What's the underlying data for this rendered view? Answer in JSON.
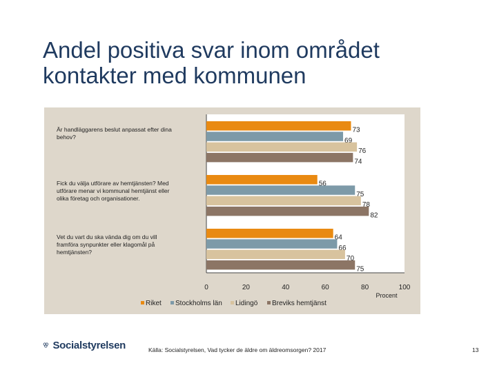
{
  "title": "Andel positiva svar inom området kontakter med kommunen",
  "colors": {
    "background_panel": "#ded7cb",
    "riket": "#e98a12",
    "stockholms_lan": "#7d9aa8",
    "lidingo": "#d8c39e",
    "breviks": "#8c7565"
  },
  "chart_data": {
    "type": "bar",
    "orientation": "horizontal",
    "categories": [
      "Är handläggarens beslut anpassat efter dina behov?",
      "Fick du välja utförare av hemtjänsten? Med utförare menar vi kommunal hemtjänst eller olika företag och organisationer.",
      "Vet du vart du ska vända dig om du vill framföra synpunkter eller klagomål på hemtjänsten?"
    ],
    "series": [
      {
        "name": "Riket",
        "color": "#e98a12",
        "values": [
          73,
          56,
          64
        ]
      },
      {
        "name": "Stockholms län",
        "color": "#7d9aa8",
        "values": [
          69,
          75,
          66
        ]
      },
      {
        "name": "Lidingö",
        "color": "#d8c39e",
        "values": [
          76,
          78,
          70
        ]
      },
      {
        "name": "Breviks hemtjänst",
        "color": "#8c7565",
        "values": [
          74,
          82,
          75
        ]
      }
    ],
    "xlim": [
      0,
      100
    ],
    "xticks": [
      "0",
      "20",
      "40",
      "60",
      "80",
      "100"
    ],
    "xlabel": "Procent",
    "legend_position": "bottom"
  },
  "footer": {
    "logo_text": "Socialstyrelsen",
    "source": "Källa: Socialstyrelsen, Vad tycker de äldre om äldreomsorgen? 2017",
    "page_number": "13"
  }
}
